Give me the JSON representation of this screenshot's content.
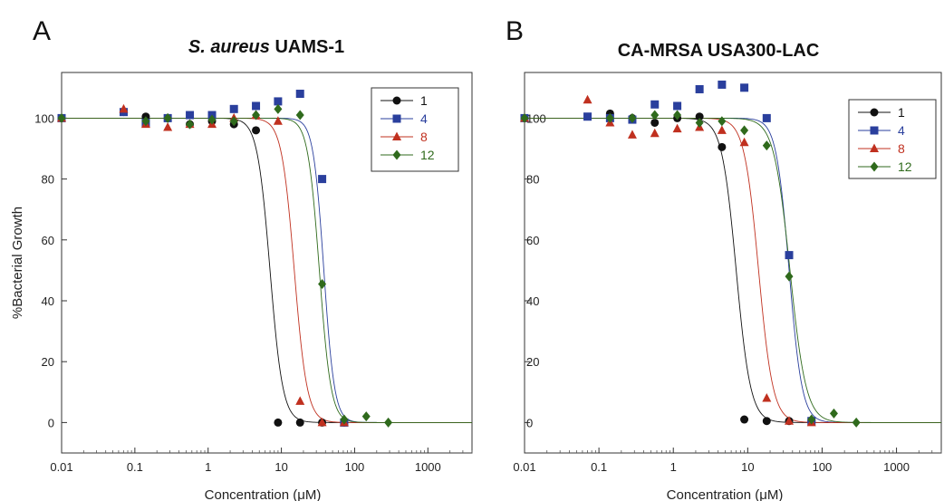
{
  "figure": {
    "ylabel": "%Bacterial Growth",
    "xlabel": "Concentration (μM)"
  },
  "chart_data": [
    {
      "type": "scatter",
      "panel": "A",
      "title_italic": "S. aureus",
      "title_rest": " UAMS-1",
      "xlabel": "Concentration (μM)",
      "ylabel": "%Bacterial Growth",
      "xscale": "log",
      "xlim": [
        0.01,
        4000
      ],
      "ylim": [
        -10,
        115
      ],
      "x_ticks": [
        0.01,
        0.1,
        1,
        10,
        100,
        1000
      ],
      "x_tick_labels": [
        "0.01",
        "0.1",
        "1",
        "10",
        "100",
        "1000"
      ],
      "y_ticks": [
        0,
        20,
        40,
        60,
        80,
        100
      ],
      "y_tick_labels": [
        "0",
        "20",
        "40",
        "60",
        "80",
        "100"
      ],
      "legend_position": "top-right",
      "series": [
        {
          "name": "1",
          "color": "#111111",
          "marker": "circle",
          "ic50": 7.0,
          "hill": 5.0,
          "points": [
            [
              0.01,
              100
            ],
            [
              0.0703,
              102
            ],
            [
              0.141,
              100.5
            ],
            [
              0.281,
              100
            ],
            [
              0.563,
              98
            ],
            [
              1.13,
              99
            ],
            [
              2.25,
              98
            ],
            [
              4.5,
              96
            ],
            [
              9.0,
              0
            ],
            [
              18,
              0
            ],
            [
              36,
              0
            ],
            [
              72,
              0
            ]
          ]
        },
        {
          "name": "4",
          "color": "#2a3f9d",
          "marker": "square",
          "ic50": 38,
          "hill": 6.0,
          "points": [
            [
              0.01,
              100
            ],
            [
              0.0703,
              102
            ],
            [
              0.141,
              98.5
            ],
            [
              0.281,
              100
            ],
            [
              0.563,
              101
            ],
            [
              1.13,
              101
            ],
            [
              2.25,
              103
            ],
            [
              4.5,
              104
            ],
            [
              9.0,
              105.5
            ],
            [
              18,
              108
            ],
            [
              36,
              80
            ],
            [
              72,
              0
            ]
          ]
        },
        {
          "name": "8",
          "color": "#c0301f",
          "marker": "triangle",
          "ic50": 15,
          "hill": 5.0,
          "points": [
            [
              0.01,
              100
            ],
            [
              0.0703,
              103
            ],
            [
              0.141,
              98
            ],
            [
              0.281,
              97
            ],
            [
              0.563,
              98
            ],
            [
              1.13,
              98
            ],
            [
              2.25,
              100
            ],
            [
              4.5,
              101
            ],
            [
              9.0,
              99
            ],
            [
              18,
              7
            ],
            [
              36,
              0
            ],
            [
              72,
              0
            ]
          ]
        },
        {
          "name": "12",
          "color": "#2f6a1c",
          "marker": "diamond",
          "ic50": 33,
          "hill": 5.5,
          "points": [
            [
              0.01,
              100
            ],
            [
              0.141,
              99
            ],
            [
              0.281,
              100
            ],
            [
              0.563,
              98
            ],
            [
              1.13,
              99.5
            ],
            [
              2.25,
              99
            ],
            [
              4.5,
              101
            ],
            [
              9.0,
              103
            ],
            [
              18,
              101
            ],
            [
              36,
              45.5
            ],
            [
              72,
              1
            ],
            [
              144,
              2
            ],
            [
              288,
              0
            ]
          ]
        }
      ]
    },
    {
      "type": "scatter",
      "panel": "B",
      "title_italic": "",
      "title_rest": "CA-MRSA USA300-LAC",
      "xlabel": "Concentration (μM)",
      "ylabel": "",
      "xscale": "log",
      "xlim": [
        0.01,
        4000
      ],
      "ylim": [
        -10,
        115
      ],
      "x_ticks": [
        0.01,
        0.1,
        1,
        10,
        100,
        1000
      ],
      "x_tick_labels": [
        "0.01",
        "0.1",
        "1",
        "10",
        "100",
        "1000"
      ],
      "y_ticks": [
        0,
        20,
        40,
        60,
        80,
        100
      ],
      "y_tick_labels": [
        "0",
        "20",
        "40",
        "60",
        "80",
        "100"
      ],
      "legend_position": "top-right",
      "series": [
        {
          "name": "1",
          "color": "#111111",
          "marker": "circle",
          "ic50": 7.0,
          "hill": 4.5,
          "points": [
            [
              0.01,
              100
            ],
            [
              0.141,
              101.5
            ],
            [
              0.281,
              100
            ],
            [
              0.563,
              98.5
            ],
            [
              1.13,
              100
            ],
            [
              2.25,
              100.5
            ],
            [
              4.5,
              90.5
            ],
            [
              9.0,
              1
            ],
            [
              18,
              0.5
            ],
            [
              36,
              0.5
            ],
            [
              72,
              0.5
            ]
          ]
        },
        {
          "name": "4",
          "color": "#2a3f9d",
          "marker": "square",
          "ic50": 36,
          "hill": 5.0,
          "points": [
            [
              0.01,
              100
            ],
            [
              0.0703,
              100.5
            ],
            [
              0.141,
              100
            ],
            [
              0.281,
              99.5
            ],
            [
              0.563,
              104.5
            ],
            [
              1.13,
              104
            ],
            [
              2.25,
              109.5
            ],
            [
              4.5,
              111
            ],
            [
              9.0,
              110
            ],
            [
              18,
              100
            ],
            [
              36,
              55
            ],
            [
              72,
              0.5
            ]
          ]
        },
        {
          "name": "8",
          "color": "#c0301f",
          "marker": "triangle",
          "ic50": 14,
          "hill": 4.5,
          "points": [
            [
              0.01,
              100
            ],
            [
              0.0703,
              106
            ],
            [
              0.141,
              98.5
            ],
            [
              0.281,
              94.5
            ],
            [
              0.563,
              95
            ],
            [
              1.13,
              96.5
            ],
            [
              2.25,
              97
            ],
            [
              4.5,
              96
            ],
            [
              9.0,
              92
            ],
            [
              18,
              8
            ],
            [
              36,
              0.5
            ],
            [
              72,
              0
            ]
          ]
        },
        {
          "name": "12",
          "color": "#2f6a1c",
          "marker": "diamond",
          "ic50": 37,
          "hill": 4.0,
          "points": [
            [
              0.01,
              100
            ],
            [
              0.141,
              100
            ],
            [
              0.281,
              100
            ],
            [
              0.563,
              101
            ],
            [
              1.13,
              101
            ],
            [
              2.25,
              98.5
            ],
            [
              4.5,
              99
            ],
            [
              9.0,
              96
            ],
            [
              18,
              91
            ],
            [
              36,
              48
            ],
            [
              72,
              1
            ],
            [
              144,
              3
            ],
            [
              288,
              0
            ]
          ]
        }
      ]
    }
  ]
}
